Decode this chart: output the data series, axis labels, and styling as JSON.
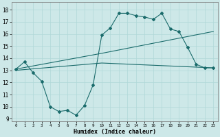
{
  "xlabel": "Humidex (Indice chaleur)",
  "xlim": [
    -0.5,
    23.5
  ],
  "ylim": [
    8.8,
    18.6
  ],
  "yticks": [
    9,
    10,
    11,
    12,
    13,
    14,
    15,
    16,
    17,
    18
  ],
  "xticks": [
    0,
    1,
    2,
    3,
    4,
    5,
    6,
    7,
    8,
    9,
    10,
    11,
    12,
    13,
    14,
    15,
    16,
    17,
    18,
    19,
    20,
    21,
    22,
    23
  ],
  "bg_color": "#cde8e8",
  "line_color": "#1a6b6b",
  "line1_x": [
    0,
    1,
    2,
    3,
    4,
    5,
    6,
    7,
    8,
    9,
    10,
    11,
    12,
    13,
    14,
    15,
    16,
    17,
    18,
    19,
    20,
    21,
    22,
    23
  ],
  "line1_y": [
    13.1,
    13.7,
    12.8,
    12.1,
    10.0,
    9.6,
    9.7,
    9.3,
    10.1,
    11.8,
    15.9,
    16.5,
    17.7,
    17.7,
    17.5,
    17.4,
    17.2,
    17.7,
    16.4,
    16.2,
    14.9,
    13.5,
    13.2,
    13.2
  ],
  "line2_x": [
    0,
    10,
    23
  ],
  "line2_y": [
    13.1,
    14.4,
    16.2
  ],
  "line3_x": [
    0,
    10,
    23
  ],
  "line3_y": [
    13.0,
    13.6,
    13.2
  ],
  "grid_color": "#b0d8d8"
}
